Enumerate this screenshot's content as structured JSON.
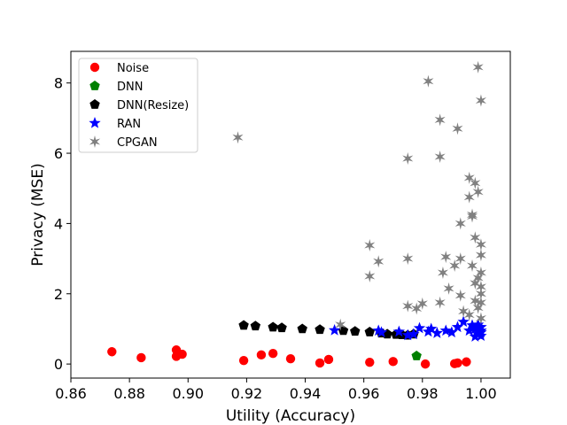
{
  "chart_data": {
    "type": "scatter",
    "xlabel": "Utility (Accuracy)",
    "ylabel": "Privacy (MSE)",
    "xlim": [
      0.86,
      1.01
    ],
    "ylim": [
      -0.4,
      8.9
    ],
    "xticks": [
      "0.86",
      "0.88",
      "0.90",
      "0.92",
      "0.94",
      "0.96",
      "0.98",
      "1.00"
    ],
    "xtick_values": [
      0.86,
      0.88,
      0.9,
      0.92,
      0.94,
      0.96,
      0.98,
      1.0
    ],
    "yticks": [
      "0",
      "2",
      "4",
      "6",
      "8"
    ],
    "ytick_values": [
      0,
      2,
      4,
      6,
      8
    ],
    "grid": false,
    "legend_position": "top-left",
    "series": [
      {
        "name": "Noise",
        "marker": "circle",
        "color": "#ff0000",
        "points": [
          [
            0.874,
            0.35
          ],
          [
            0.884,
            0.18
          ],
          [
            0.896,
            0.4
          ],
          [
            0.896,
            0.22
          ],
          [
            0.898,
            0.28
          ],
          [
            0.919,
            0.1
          ],
          [
            0.925,
            0.26
          ],
          [
            0.929,
            0.3
          ],
          [
            0.935,
            0.15
          ],
          [
            0.945,
            0.03
          ],
          [
            0.948,
            0.13
          ],
          [
            0.962,
            0.05
          ],
          [
            0.97,
            0.07
          ],
          [
            0.981,
            0.0
          ],
          [
            0.991,
            0.01
          ],
          [
            0.992,
            0.03
          ],
          [
            0.995,
            0.06
          ]
        ]
      },
      {
        "name": "DNN",
        "marker": "pentagon",
        "color": "#008000",
        "points": [
          [
            0.978,
            0.23
          ]
        ]
      },
      {
        "name": "DNN(Resize)",
        "marker": "pentagon",
        "color": "#000000",
        "points": [
          [
            0.919,
            1.1
          ],
          [
            0.923,
            1.08
          ],
          [
            0.929,
            1.05
          ],
          [
            0.932,
            1.03
          ],
          [
            0.939,
            1.0
          ],
          [
            0.945,
            0.98
          ],
          [
            0.953,
            0.95
          ],
          [
            0.957,
            0.93
          ],
          [
            0.962,
            0.91
          ],
          [
            0.966,
            0.88
          ],
          [
            0.968,
            0.85
          ],
          [
            0.971,
            0.84
          ],
          [
            0.973,
            0.83
          ],
          [
            0.975,
            0.82
          ],
          [
            0.977,
            0.85
          ]
        ]
      },
      {
        "name": "RAN",
        "marker": "star",
        "color": "#0000ff",
        "points": [
          [
            0.95,
            0.96
          ],
          [
            0.965,
            0.95
          ],
          [
            0.966,
            0.9
          ],
          [
            0.972,
            0.92
          ],
          [
            0.975,
            0.82
          ],
          [
            0.977,
            0.85
          ],
          [
            0.979,
            1.02
          ],
          [
            0.982,
            0.92
          ],
          [
            0.983,
            1.0
          ],
          [
            0.985,
            0.88
          ],
          [
            0.988,
            0.95
          ],
          [
            0.99,
            0.9
          ],
          [
            0.992,
            1.05
          ],
          [
            0.994,
            1.2
          ],
          [
            0.996,
            0.95
          ],
          [
            0.997,
            1.1
          ],
          [
            0.998,
            1.0
          ],
          [
            0.999,
            0.85
          ],
          [
            1.0,
            0.95
          ],
          [
            1.0,
            0.8
          ],
          [
            1.0,
            1.05
          ],
          [
            0.999,
            1.12
          ],
          [
            0.998,
            0.78
          ],
          [
            1.0,
            0.9
          ]
        ]
      },
      {
        "name": "CPGAN",
        "marker": "star6",
        "color": "#808080",
        "points": [
          [
            0.917,
            6.45
          ],
          [
            0.952,
            1.12
          ],
          [
            0.962,
            3.38
          ],
          [
            0.962,
            2.5
          ],
          [
            0.965,
            2.92
          ],
          [
            0.975,
            5.85
          ],
          [
            0.975,
            3.0
          ],
          [
            0.975,
            1.65
          ],
          [
            0.978,
            1.58
          ],
          [
            0.98,
            1.72
          ],
          [
            0.982,
            8.05
          ],
          [
            0.986,
            6.95
          ],
          [
            0.986,
            5.9
          ],
          [
            0.987,
            2.6
          ],
          [
            0.986,
            1.75
          ],
          [
            0.988,
            3.05
          ],
          [
            0.989,
            2.15
          ],
          [
            0.991,
            2.8
          ],
          [
            0.992,
            6.7
          ],
          [
            0.993,
            3.0
          ],
          [
            0.993,
            4.0
          ],
          [
            0.993,
            1.95
          ],
          [
            0.994,
            1.5
          ],
          [
            0.996,
            5.3
          ],
          [
            0.996,
            4.75
          ],
          [
            0.997,
            4.2
          ],
          [
            0.998,
            3.6
          ],
          [
            0.997,
            2.8
          ],
          [
            0.998,
            2.3
          ],
          [
            0.998,
            1.8
          ],
          [
            0.999,
            8.45
          ],
          [
            1.0,
            7.5
          ],
          [
            0.999,
            4.9
          ],
          [
            1.0,
            3.4
          ],
          [
            1.0,
            2.6
          ],
          [
            1.0,
            2.0
          ],
          [
            0.999,
            1.6
          ],
          [
            0.996,
            1.4
          ],
          [
            1.0,
            1.3
          ],
          [
            0.997,
            4.25
          ],
          [
            1.0,
            3.1
          ],
          [
            0.999,
            2.45
          ],
          [
            1.0,
            1.75
          ],
          [
            0.998,
            5.15
          ],
          [
            1.0,
            2.2
          ]
        ]
      }
    ]
  }
}
